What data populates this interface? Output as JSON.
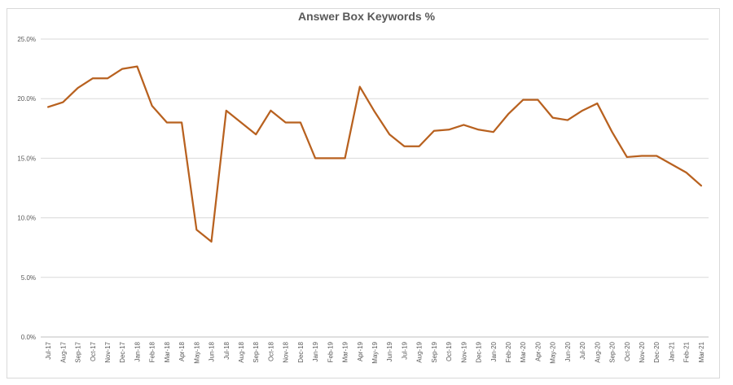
{
  "chart_data": {
    "type": "line",
    "title": "Answer Box Keywords %",
    "xlabel": "",
    "ylabel": "",
    "ylim": [
      0,
      25
    ],
    "ytick_values": [
      0,
      5,
      10,
      15,
      20,
      25
    ],
    "ytick_labels": [
      "0.0%",
      "5.0%",
      "10.0%",
      "15.0%",
      "20.0%",
      "25.0%"
    ],
    "grid": true,
    "legend": "none",
    "color": "#B8611F",
    "categories": [
      "Jul-17",
      "Aug-17",
      "Sep-17",
      "Oct-17",
      "Nov-17",
      "Dec-17",
      "Jan-18",
      "Feb-18",
      "Mar-18",
      "Apr-18",
      "May-18",
      "Jun-18",
      "Jul-18",
      "Aug-18",
      "Sep-18",
      "Oct-18",
      "Nov-18",
      "Dec-18",
      "Jan-19",
      "Feb-19",
      "Mar-19",
      "Apr-19",
      "May-19",
      "Jun-19",
      "Jul-19",
      "Aug-19",
      "Sep-19",
      "Oct-19",
      "Nov-19",
      "Dec-19",
      "Jan-20",
      "Feb-20",
      "Mar-20",
      "Apr-20",
      "May-20",
      "Jun-20",
      "Jul-20",
      "Aug-20",
      "Sep-20",
      "Oct-20",
      "Nov-20",
      "Dec-20",
      "Jan-21",
      "Feb-21",
      "Mar-21"
    ],
    "series": [
      {
        "values": [
          19.3,
          19.7,
          20.9,
          21.7,
          21.7,
          22.5,
          22.7,
          19.4,
          18.0,
          18.0,
          9.0,
          8.0,
          19.0,
          18.0,
          17.0,
          19.0,
          18.0,
          18.0,
          15.0,
          15.0,
          15.0,
          21.0,
          18.9,
          17.0,
          16.0,
          16.0,
          17.3,
          17.4,
          17.8,
          17.4,
          17.2,
          18.7,
          19.9,
          19.9,
          18.4,
          18.2,
          19.0,
          19.6,
          17.2,
          15.1,
          15.2,
          15.2,
          14.5,
          13.8,
          12.7
        ]
      }
    ]
  }
}
